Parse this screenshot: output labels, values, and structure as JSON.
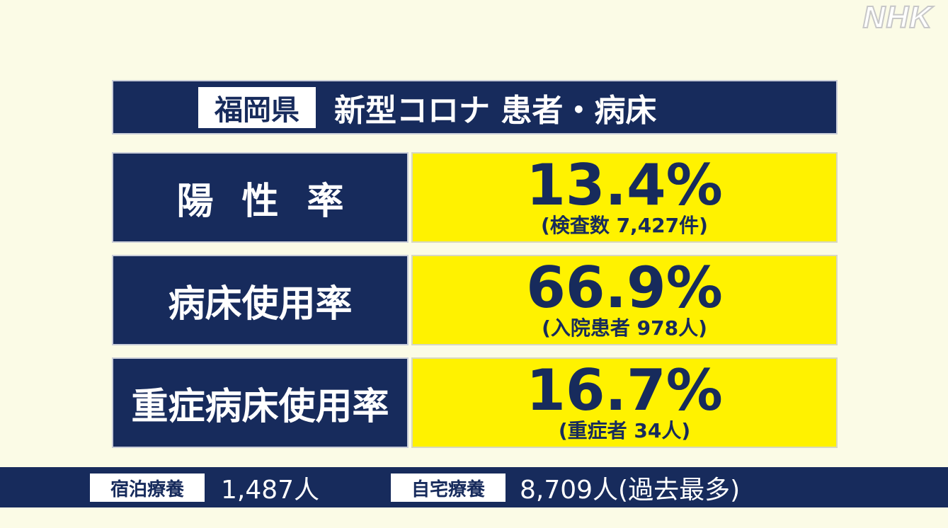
{
  "logo": "NHK",
  "header": {
    "badge": "福岡県",
    "title": "新型コロナ 患者・病床"
  },
  "rows": [
    {
      "label": "陽性率",
      "value": "13.4%",
      "note": "(検査数 7,427件)"
    },
    {
      "label": "病床使用率",
      "value": "66.9%",
      "note": "(入院患者 978人)"
    },
    {
      "label": "重症病床使用率",
      "value": "16.7%",
      "note": "(重症者 34人)"
    }
  ],
  "footer": [
    {
      "label": "宿泊療養",
      "value": "1,487人"
    },
    {
      "label": "自宅療養",
      "value": "8,709人(過去最多)"
    }
  ]
}
